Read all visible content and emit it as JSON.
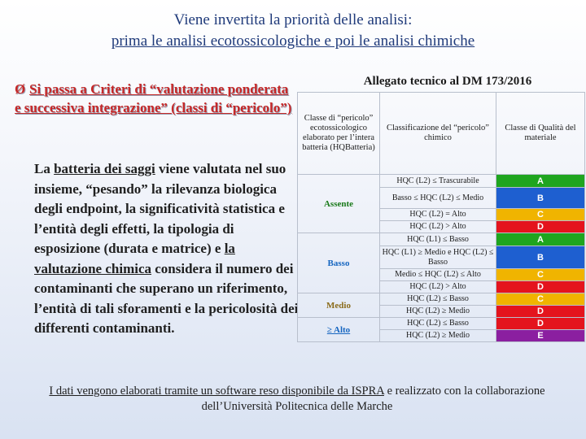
{
  "title": {
    "line1": "Viene invertita la priorità delle analisi:",
    "line2": "prima le analisi ecotossicologiche e poi le analisi chimiche"
  },
  "bullet": {
    "arrow": "Ø",
    "text": "Si passa a Criteri di “valutazione ponderata e successiva integrazione” (classi di “pericolo”)"
  },
  "body": {
    "p1": "La ",
    "p2": "batteria dei saggi",
    "p3": " viene valutata nel suo insieme, “pesando” la rilevanza biologica degli endpoint, la significatività statistica e l’entità degli effetti, la tipologia di esposizione (durata e matrice) e ",
    "p4": "la valutazione chimica",
    "p5": " considera il numero dei contaminanti che superano un riferimento, l’entità di tali sforamenti e la pericolosità dei differenti contaminanti."
  },
  "allegato": "Allegato tecnico al DM 173/2016",
  "table": {
    "headers": {
      "col1": "Classe di “pericolo” ecotossicologico elaborato per l’intera batteria (HQBatteria)",
      "col2": "Classificazione del “pericolo” chimico",
      "col3": "Classe di Qualità del materiale"
    },
    "levels": [
      "Assente",
      "Basso",
      "Medio",
      "≥ Alto"
    ],
    "rows": [
      {
        "cls": "HQC (L2) ≤ Trascurabile",
        "q": "A",
        "color": "#1fa51f"
      },
      {
        "cls": "Basso ≤ HQC (L2) ≤ Medio",
        "q": "B",
        "color": "#1e5fd0"
      },
      {
        "cls": "HQC (L2) = Alto",
        "q": "C",
        "color": "#f0b400"
      },
      {
        "cls": "HQC (L2) > Alto",
        "q": "D",
        "color": "#e4141d"
      },
      {
        "cls": "HQC (L1) ≤ Basso",
        "q": "A",
        "color": "#1fa51f"
      },
      {
        "cls": "HQC (L1) ≥ Medio e HQC (L2) ≤ Basso",
        "q": "B",
        "color": "#1e5fd0"
      },
      {
        "cls": "Medio ≤ HQC (L2) ≤ Alto",
        "q": "C",
        "color": "#f0b400"
      },
      {
        "cls": "HQC (L2) > Alto",
        "q": "D",
        "color": "#e4141d"
      },
      {
        "cls": "HQC (L2) ≤ Basso",
        "q": "C",
        "color": "#f0b400"
      },
      {
        "cls": "HQC (L2) ≥ Medio",
        "q": "D",
        "color": "#e4141d"
      },
      {
        "cls": "HQC (L2) ≤ Basso",
        "q": "D",
        "color": "#e4141d"
      },
      {
        "cls": "HQC (L2) ≥ Medio",
        "q": "E",
        "color": "#8b1fa0"
      }
    ]
  },
  "footer": {
    "f1": "I dati vengono elaborati tramite un software reso disponibile da ISPRA",
    "f2": " e realizzato con la collaborazione dell’Università Politecnica delle Marche"
  }
}
